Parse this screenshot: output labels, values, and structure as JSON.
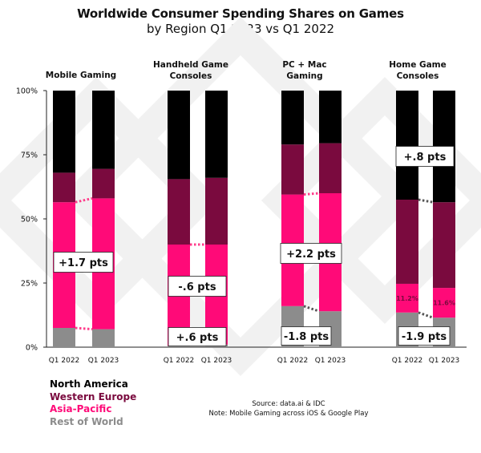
{
  "title": "Worldwide Consumer Spending Shares on Games",
  "subtitle": "by Region Q1 2023 vs Q1 2022",
  "source": "Source: data.ai & IDC",
  "note": "Note: Mobile Gaming across iOS & Google Play",
  "colors": {
    "North America": "#000000",
    "Western Europe": "#7a0a3e",
    "Asia-Pacific": "#ff0a78",
    "Rest of World": "#8c8c8c",
    "dots_pink": "#ff3d8b",
    "dots_grey": "#555555"
  },
  "legend": [
    {
      "label": "North America",
      "color": "#000000"
    },
    {
      "label": "Western Europe",
      "color": "#7a0a3e"
    },
    {
      "label": "Asia-Pacific",
      "color": "#ff0a78"
    },
    {
      "label": "Rest of World",
      "color": "#8c8c8c"
    }
  ],
  "chart_data": {
    "type": "bar",
    "stacked": true,
    "percent": true,
    "y_ticks": [
      "0%",
      "25%",
      "50%",
      "75%",
      "100%"
    ],
    "ylim": [
      0,
      100
    ],
    "grid": false,
    "legend_position": "bottom-left",
    "groups": [
      {
        "name": "Mobile Gaming",
        "categories": [
          "Q1 2022",
          "Q1 2023"
        ],
        "series": [
          {
            "name": "Rest of World",
            "values": [
              7.5,
              7
            ]
          },
          {
            "name": "Asia-Pacific",
            "values": [
              49,
              51
            ]
          },
          {
            "name": "Western Europe",
            "values": [
              11.5,
              11.5
            ]
          },
          {
            "name": "North America",
            "values": [
              32,
              30.5
            ]
          }
        ],
        "annotations": [
          {
            "text": "+1.7 pts"
          }
        ]
      },
      {
        "name": "Handheld Game Consoles",
        "categories": [
          "Q1 2022",
          "Q1 2023"
        ],
        "series": [
          {
            "name": "Rest of World",
            "values": [
              0.5,
              1
            ]
          },
          {
            "name": "Asia-Pacific",
            "values": [
              39.5,
              39
            ]
          },
          {
            "name": "Western Europe",
            "values": [
              25.5,
              26
            ]
          },
          {
            "name": "North America",
            "values": [
              34.5,
              34
            ]
          }
        ],
        "annotations": [
          {
            "text": "-.6 pts"
          },
          {
            "text": "+.6 pts"
          }
        ]
      },
      {
        "name": "PC + Mac Gaming",
        "categories": [
          "Q1 2022",
          "Q1 2023"
        ],
        "series": [
          {
            "name": "Rest of World",
            "values": [
              16,
              14
            ]
          },
          {
            "name": "Asia-Pacific",
            "values": [
              43.5,
              46
            ]
          },
          {
            "name": "Western Europe",
            "values": [
              19.5,
              19.5
            ]
          },
          {
            "name": "North America",
            "values": [
              21,
              20.5
            ]
          }
        ],
        "annotations": [
          {
            "text": "+2.2 pts"
          },
          {
            "text": "-1.8 pts"
          }
        ]
      },
      {
        "name": "Home Game Consoles",
        "categories": [
          "Q1 2022",
          "Q1 2023"
        ],
        "series": [
          {
            "name": "Rest of World",
            "values": [
              13.5,
              11.5
            ]
          },
          {
            "name": "Asia-Pacific",
            "values": [
              11.2,
              11.6
            ]
          },
          {
            "name": "Western Europe",
            "values": [
              32.8,
              33.4
            ]
          },
          {
            "name": "North America",
            "values": [
              42.5,
              43.5
            ]
          }
        ],
        "segment_labels": [
          "11.2%",
          "11.6%"
        ],
        "annotations": [
          {
            "text": "+.8 pts"
          },
          {
            "text": "-1.9 pts"
          }
        ]
      }
    ]
  }
}
